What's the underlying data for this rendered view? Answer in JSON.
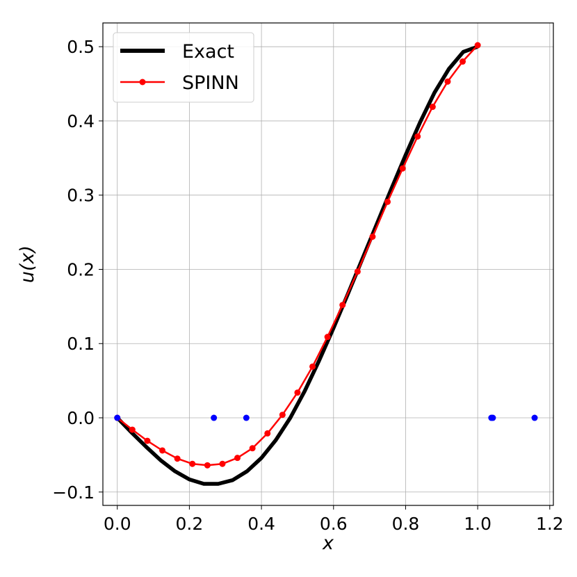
{
  "chart_data": {
    "type": "line",
    "title": "",
    "xlabel": "x",
    "ylabel": "u(x)",
    "xlim": [
      -0.04,
      1.21
    ],
    "ylim": [
      -0.118,
      0.532
    ],
    "x_ticks": [
      0.0,
      0.2,
      0.4,
      0.6,
      0.8,
      1.0,
      1.2
    ],
    "x_tick_labels": [
      "0.0",
      "0.2",
      "0.4",
      "0.6",
      "0.8",
      "1.0",
      "1.2"
    ],
    "y_ticks": [
      -0.1,
      0.0,
      0.1,
      0.2,
      0.3,
      0.4,
      0.5
    ],
    "y_tick_labels": [
      "−0.1",
      "0.0",
      "0.1",
      "0.2",
      "0.3",
      "0.4",
      "0.5"
    ],
    "grid": true,
    "legend": {
      "position": "top-left",
      "entries": [
        "Exact",
        "SPINN"
      ]
    },
    "colors": {
      "exact": "#000000",
      "spinn": "#ff0000",
      "nodes": "#0000ff",
      "grid": "#b0b0b0"
    },
    "series": [
      {
        "name": "Exact",
        "style": "line",
        "x": [
          0.0,
          0.04,
          0.08,
          0.12,
          0.16,
          0.2,
          0.24,
          0.28,
          0.32,
          0.36,
          0.4,
          0.44,
          0.48,
          0.52,
          0.56,
          0.6,
          0.64,
          0.68,
          0.72,
          0.76,
          0.8,
          0.84,
          0.88,
          0.92,
          0.96,
          1.0
        ],
        "y": [
          0.0,
          -0.02,
          -0.039,
          -0.057,
          -0.072,
          -0.083,
          -0.089,
          -0.089,
          -0.084,
          -0.072,
          -0.054,
          -0.03,
          0.0,
          0.036,
          0.077,
          0.121,
          0.167,
          0.214,
          0.261,
          0.308,
          0.354,
          0.398,
          0.438,
          0.47,
          0.493,
          0.5
        ]
      },
      {
        "name": "SPINN",
        "style": "line-marker",
        "x": [
          0.0,
          0.0417,
          0.0833,
          0.125,
          0.1667,
          0.2083,
          0.25,
          0.2917,
          0.3333,
          0.375,
          0.4167,
          0.4583,
          0.5,
          0.5417,
          0.5833,
          0.625,
          0.6667,
          0.7083,
          0.75,
          0.7917,
          0.8333,
          0.875,
          0.9167,
          0.9583,
          1.0
        ],
        "y": [
          0.0,
          -0.016,
          -0.031,
          -0.044,
          -0.055,
          -0.062,
          -0.064,
          -0.062,
          -0.054,
          -0.041,
          -0.021,
          0.004,
          0.034,
          0.069,
          0.109,
          0.152,
          0.197,
          0.244,
          0.291,
          0.336,
          0.379,
          0.419,
          0.453,
          0.48,
          0.502
        ]
      },
      {
        "style": "scatter",
        "x": [
          0.0,
          0.268,
          0.358,
          1.038,
          1.042,
          1.158
        ],
        "y": [
          0.0,
          0.0,
          0.0,
          0.0,
          0.0,
          0.0
        ]
      }
    ]
  }
}
